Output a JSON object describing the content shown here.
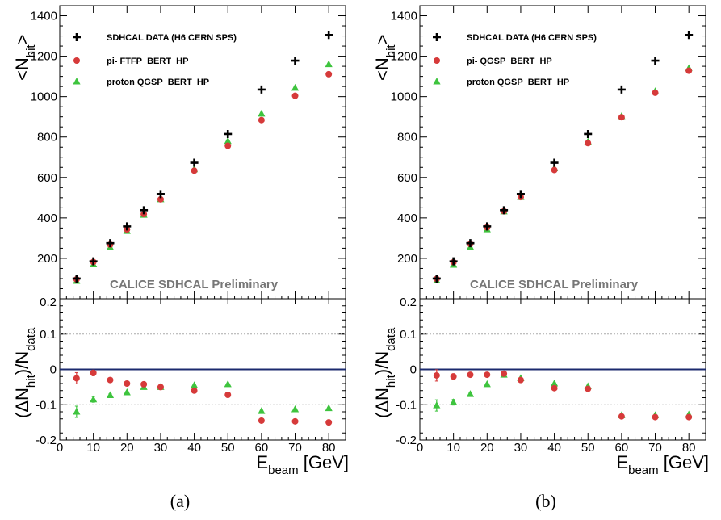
{
  "chart_data": [
    {
      "type": "scatter",
      "caption": "(a)",
      "banner": "CALICE SDHCAL Preliminary",
      "top": {
        "ylabel": {
          "main": "<N",
          "sub": "hit",
          "tail": ">"
        },
        "ylim": [
          0,
          1450
        ],
        "yticks": [
          200,
          400,
          600,
          800,
          1000,
          1200,
          1400
        ]
      },
      "bottom": {
        "ylabel": {
          "p1": "(ΔN",
          "sub1": "hit",
          "p2": ")/N",
          "sub2": "data"
        },
        "ylim": [
          -0.2,
          0.2
        ],
        "yticks": [
          -0.2,
          -0.1,
          0,
          0.1,
          0.2
        ],
        "ytick_labels": [
          "-0.2",
          "-0.1",
          "0",
          "0.1",
          "0.2"
        ],
        "dashed_lines": [
          -0.1,
          0.1
        ]
      },
      "xlabel": {
        "main": "E",
        "sub": "beam",
        "tail": " [GeV]"
      },
      "xlim": [
        0,
        85
      ],
      "xticks": [
        0,
        10,
        20,
        30,
        40,
        50,
        60,
        70,
        80
      ],
      "x": [
        5,
        10,
        15,
        20,
        25,
        30,
        40,
        50,
        60,
        70,
        80
      ],
      "series": [
        {
          "name": "SDHCAL DATA (H6 CERN SPS)",
          "marker": "cross",
          "color": "#000000",
          "values": [
            100,
            185,
            275,
            358,
            438,
            518,
            673,
            815,
            1035,
            1178,
            1305
          ]
        },
        {
          "name": "pi- FTFP_BERT_HP",
          "marker": "circle",
          "color": "#d63a3a",
          "values": [
            96,
            182,
            268,
            343,
            419,
            492,
            634,
            757,
            884,
            1004,
            1111
          ],
          "ratio": [
            -0.025,
            -0.01,
            -0.03,
            -0.04,
            -0.042,
            -0.05,
            -0.06,
            -0.072,
            -0.145,
            -0.147,
            -0.15
          ],
          "ratio_err": [
            0.016,
            0.008,
            0.004,
            0.003,
            0.003,
            0.002,
            0.002,
            0.002,
            0.002,
            0.002,
            0.002
          ]
        },
        {
          "name": "proton QGSP_BERT_HP",
          "marker": "triangle",
          "color": "#3ec43e",
          "values": [
            88,
            170,
            255,
            335,
            415,
            492,
            640,
            780,
            915,
            1043,
            1160
          ],
          "ratio": [
            -0.12,
            -0.085,
            -0.073,
            -0.065,
            -0.05,
            -0.05,
            -0.045,
            -0.042,
            -0.118,
            -0.113,
            -0.11
          ],
          "ratio_err": [
            0.016,
            0.008,
            0.004,
            0.003,
            0.003,
            0.002,
            0.002,
            0.002,
            0.002,
            0.002,
            0.002
          ]
        }
      ]
    },
    {
      "type": "scatter",
      "caption": "(b)",
      "banner": "CALICE SDHCAL Preliminary",
      "top": {
        "ylabel": {
          "main": "<N",
          "sub": "hit",
          "tail": ">"
        },
        "ylim": [
          0,
          1450
        ],
        "yticks": [
          200,
          400,
          600,
          800,
          1000,
          1200,
          1400
        ]
      },
      "bottom": {
        "ylabel": {
          "p1": "(ΔN",
          "sub1": "hit",
          "p2": ")/N",
          "sub2": "data"
        },
        "ylim": [
          -0.2,
          0.2
        ],
        "yticks": [
          -0.2,
          -0.1,
          0,
          0.1,
          0.2
        ],
        "ytick_labels": [
          "-0.2",
          "-0.1",
          "0",
          "0.1",
          "0.2"
        ],
        "dashed_lines": [
          -0.1,
          0.1
        ]
      },
      "xlabel": {
        "main": "E",
        "sub": "beam",
        "tail": " [GeV]"
      },
      "xlim": [
        0,
        85
      ],
      "xticks": [
        0,
        10,
        20,
        30,
        40,
        50,
        60,
        70,
        80
      ],
      "x": [
        5,
        10,
        15,
        20,
        25,
        30,
        40,
        50,
        60,
        70,
        80
      ],
      "series": [
        {
          "name": "SDHCAL DATA (H6 CERN SPS)",
          "marker": "cross",
          "color": "#000000",
          "values": [
            100,
            185,
            275,
            358,
            438,
            518,
            673,
            815,
            1035,
            1178,
            1305
          ]
        },
        {
          "name": "pi- QGSP_BERT_HP",
          "marker": "circle",
          "color": "#d63a3a",
          "values": [
            98,
            181,
            271,
            353,
            433,
            503,
            637,
            770,
            898,
            1019,
            1128
          ],
          "ratio": [
            -0.017,
            -0.02,
            -0.015,
            -0.015,
            -0.012,
            -0.03,
            -0.053,
            -0.055,
            -0.133,
            -0.135,
            -0.135
          ],
          "ratio_err": [
            0.016,
            0.008,
            0.004,
            0.003,
            0.003,
            0.002,
            0.002,
            0.002,
            0.002,
            0.002,
            0.002
          ]
        },
        {
          "name": "proton QGSP_BERT_HP",
          "marker": "triangle",
          "color": "#3ec43e",
          "values": [
            90,
            168,
            256,
            343,
            432,
            503,
            645,
            777,
            903,
            1026,
            1140
          ],
          "ratio": [
            -0.102,
            -0.093,
            -0.07,
            -0.042,
            -0.015,
            -0.025,
            -0.04,
            -0.048,
            -0.13,
            -0.13,
            -0.128
          ],
          "ratio_err": [
            0.016,
            0.008,
            0.004,
            0.003,
            0.003,
            0.002,
            0.002,
            0.002,
            0.002,
            0.002,
            0.002
          ]
        }
      ]
    }
  ]
}
